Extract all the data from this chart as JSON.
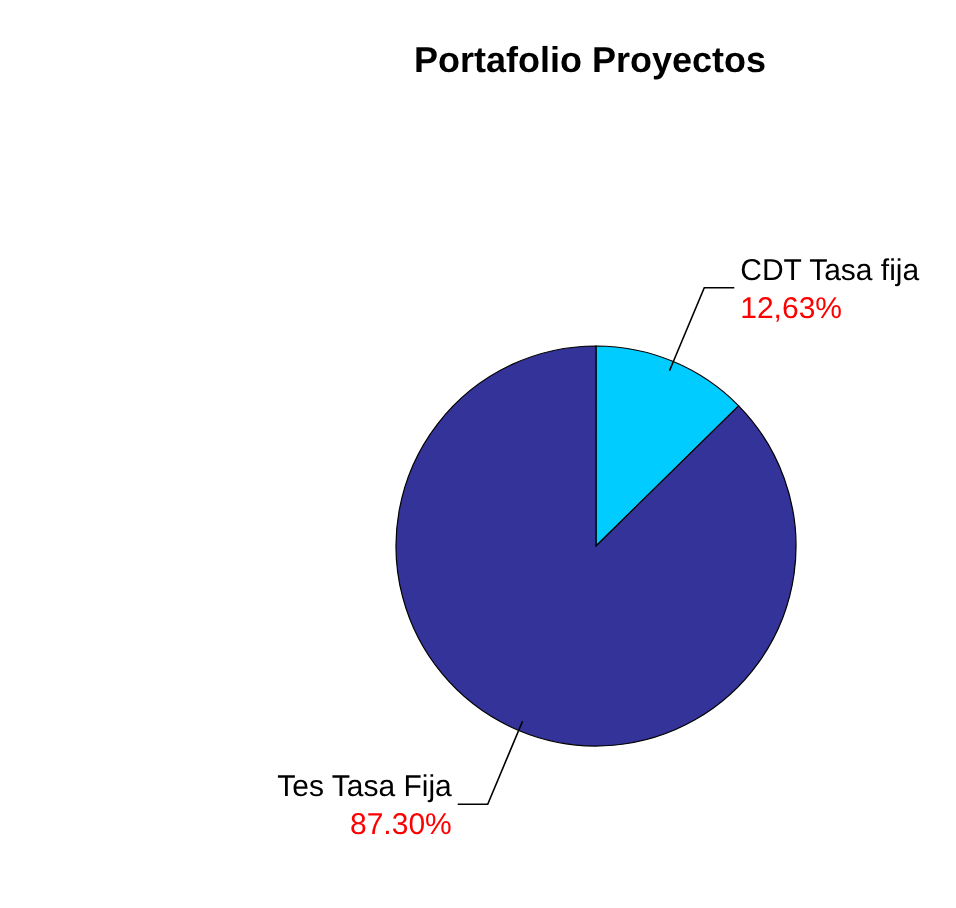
{
  "chart_data": {
    "type": "pie",
    "title": "Portafolio Proyectos",
    "categories": [
      "CDT Tasa fija",
      "Tes Tasa Fija"
    ],
    "values": [
      12.63,
      87.3
    ],
    "value_labels": [
      "12,63%",
      "87.30%"
    ],
    "colors": [
      "#00ccff",
      "#333399"
    ]
  }
}
